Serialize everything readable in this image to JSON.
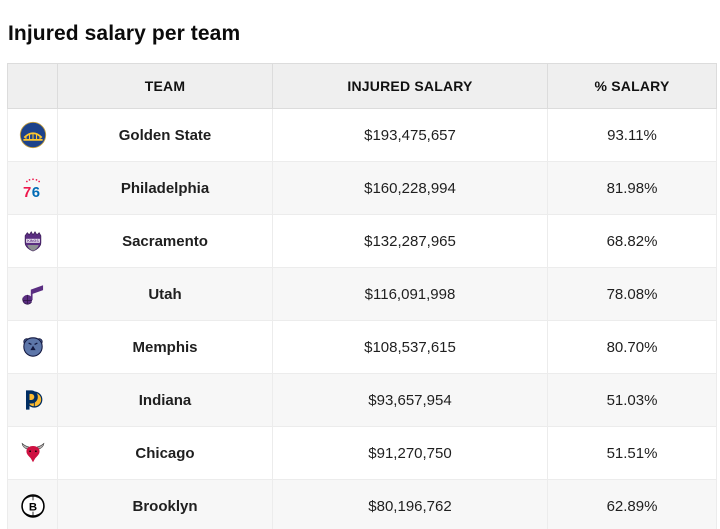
{
  "page": {
    "title": "Injured salary per team"
  },
  "table": {
    "headers": {
      "logo": "",
      "team": "TEAM",
      "injured_salary": "INJURED SALARY",
      "pct_salary": "% SALARY"
    },
    "rows": [
      {
        "icon": "golden-state-warriors-logo",
        "team": "Golden State",
        "injured_salary": "$193,475,657",
        "pct_salary": "93.11%"
      },
      {
        "icon": "philadelphia-76ers-logo",
        "team": "Philadelphia",
        "injured_salary": "$160,228,994",
        "pct_salary": "81.98%"
      },
      {
        "icon": "sacramento-kings-logo",
        "team": "Sacramento",
        "injured_salary": "$132,287,965",
        "pct_salary": "68.82%"
      },
      {
        "icon": "utah-jazz-logo",
        "team": "Utah",
        "injured_salary": "$116,091,998",
        "pct_salary": "78.08%"
      },
      {
        "icon": "memphis-grizzlies-logo",
        "team": "Memphis",
        "injured_salary": "$108,537,615",
        "pct_salary": "80.70%"
      },
      {
        "icon": "indiana-pacers-logo",
        "team": "Indiana",
        "injured_salary": "$93,657,954",
        "pct_salary": "51.03%"
      },
      {
        "icon": "chicago-bulls-logo",
        "team": "Chicago",
        "injured_salary": "$91,270,750",
        "pct_salary": "51.51%"
      },
      {
        "icon": "brooklyn-nets-logo",
        "team": "Brooklyn",
        "injured_salary": "$80,196,762",
        "pct_salary": "62.89%"
      }
    ]
  },
  "chart_data": {
    "type": "table",
    "title": "Injured salary per team",
    "columns": [
      "TEAM",
      "INJURED SALARY",
      "% SALARY"
    ],
    "categories": [
      "Golden State",
      "Philadelphia",
      "Sacramento",
      "Utah",
      "Memphis",
      "Indiana",
      "Chicago",
      "Brooklyn"
    ],
    "series": [
      {
        "name": "INJURED SALARY",
        "values": [
          193475657,
          160228994,
          132287965,
          116091998,
          108537615,
          93657954,
          91270750,
          80196762
        ]
      },
      {
        "name": "% SALARY",
        "values": [
          93.11,
          81.98,
          68.82,
          78.08,
          80.7,
          51.03,
          51.51,
          62.89
        ]
      }
    ],
    "layout": {
      "header_background": "#efefef",
      "striped_rows": true,
      "stripe_color": "#f7f7f7"
    }
  },
  "colors": {
    "header_bg": "#efefef",
    "stripe_bg": "#f7f7f7",
    "border": "#e0e0e0",
    "text": "#111111",
    "warriors_blue": "#1D428A",
    "warriors_gold": "#FFC72C",
    "sixers_red": "#ED174C",
    "sixers_blue": "#006BB6",
    "kings_purple": "#5A2D81",
    "jazz_purple": "#5A2D81",
    "grizzlies_blue": "#5D76A9",
    "grizzlies_navy": "#12173F",
    "pacers_navy": "#002D62",
    "pacers_gold": "#FDBB30",
    "bulls_red": "#CE1141",
    "nets_black": "#000000"
  }
}
